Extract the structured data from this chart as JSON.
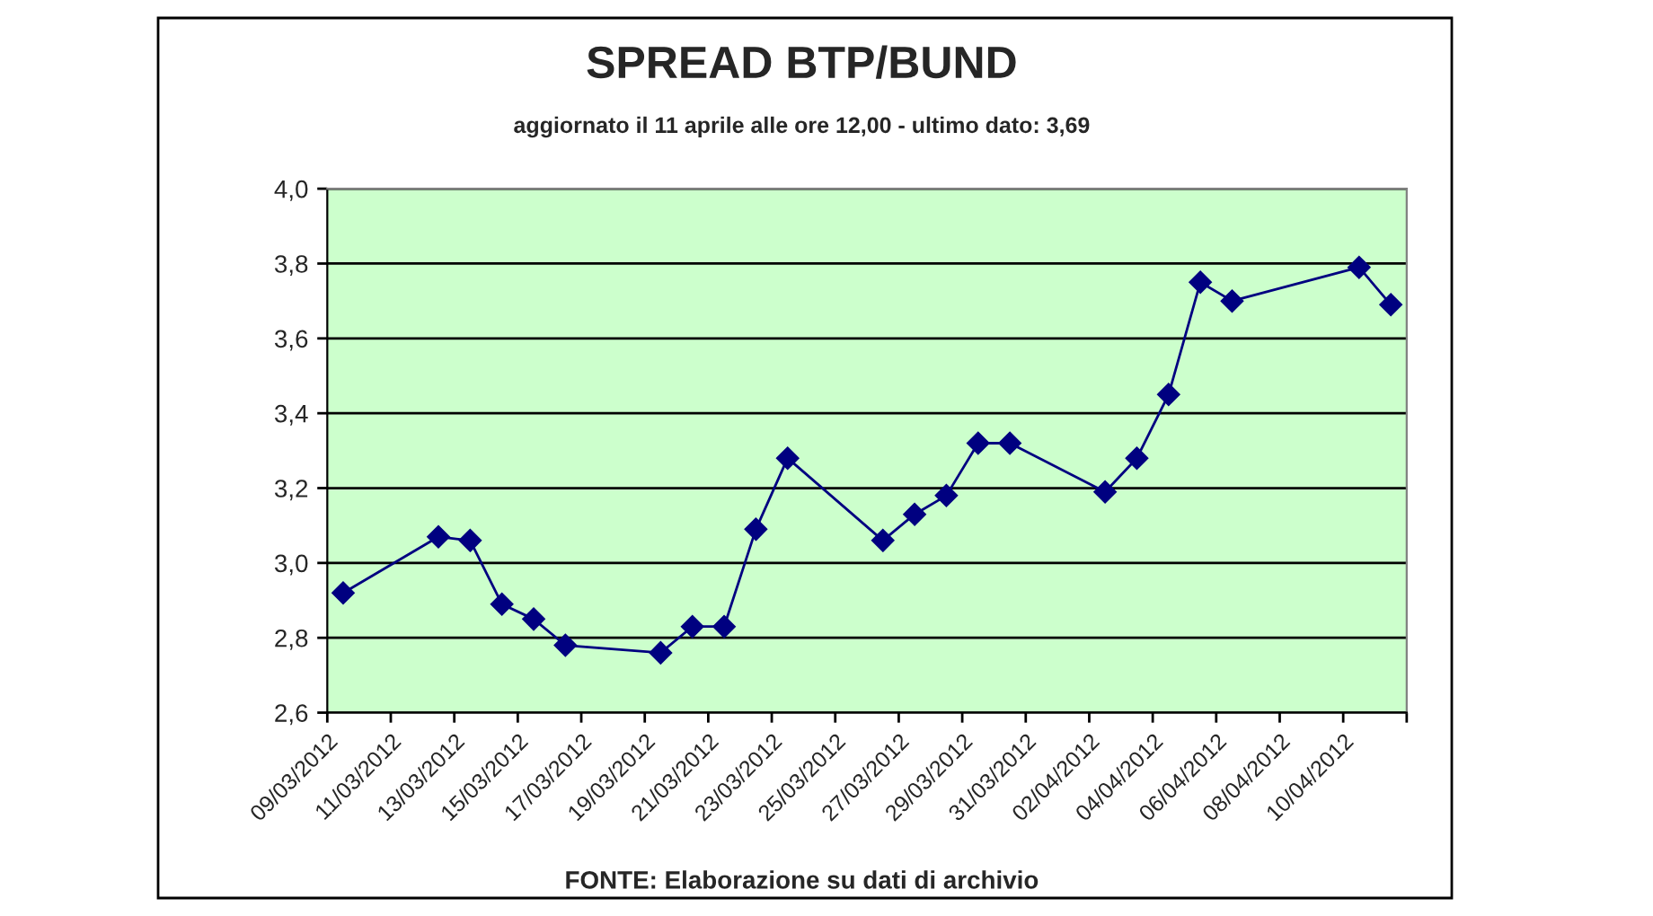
{
  "chart_data": {
    "type": "line",
    "title": "SPREAD BTP/BUND",
    "subtitle": "aggiornato il 11 aprile alle ore 12,00 - ultimo dato: 3,69",
    "x": [
      "2012-03-09T12:00",
      "2012-03-12T12:00",
      "2012-03-13T12:00",
      "2012-03-14T12:00",
      "2012-03-15T12:00",
      "2012-03-16T12:00",
      "2012-03-19T12:00",
      "2012-03-20T12:00",
      "2012-03-21T12:00",
      "2012-03-22T12:00",
      "2012-03-23T12:00",
      "2012-03-26T12:00",
      "2012-03-27T12:00",
      "2012-03-28T12:00",
      "2012-03-29T12:00",
      "2012-03-30T12:00",
      "2012-04-02T12:00",
      "2012-04-03T12:00",
      "2012-04-04T12:00",
      "2012-04-05T12:00",
      "2012-04-06T12:00",
      "2012-04-10T12:00",
      "2012-04-11T12:00"
    ],
    "series": [
      {
        "color": "#000080",
        "values": [
          2.92,
          3.07,
          3.06,
          2.89,
          2.85,
          2.78,
          2.76,
          2.83,
          2.83,
          3.09,
          3.28,
          3.06,
          3.13,
          3.18,
          3.32,
          3.32,
          3.19,
          3.28,
          3.45,
          3.75,
          3.7,
          3.79,
          3.69
        ]
      }
    ],
    "xlim": [
      "2012-03-09",
      "2012-04-12"
    ],
    "xticks": [
      {
        "value": "2012-03-09",
        "label": "09/03/2012"
      },
      {
        "value": "2012-03-11",
        "label": "11/03/2012"
      },
      {
        "value": "2012-03-13",
        "label": "13/03/2012"
      },
      {
        "value": "2012-03-15",
        "label": "15/03/2012"
      },
      {
        "value": "2012-03-17",
        "label": "17/03/2012"
      },
      {
        "value": "2012-03-19",
        "label": "19/03/2012"
      },
      {
        "value": "2012-03-21",
        "label": "21/03/2012"
      },
      {
        "value": "2012-03-23",
        "label": "23/03/2012"
      },
      {
        "value": "2012-03-25",
        "label": "25/03/2012"
      },
      {
        "value": "2012-03-27",
        "label": "27/03/2012"
      },
      {
        "value": "2012-03-29",
        "label": "29/03/2012"
      },
      {
        "value": "2012-03-31",
        "label": "31/03/2012"
      },
      {
        "value": "2012-04-02",
        "label": "02/04/2012"
      },
      {
        "value": "2012-04-04",
        "label": "04/04/2012"
      },
      {
        "value": "2012-04-06",
        "label": "06/04/2012"
      },
      {
        "value": "2012-04-08",
        "label": "08/04/2012"
      },
      {
        "value": "2012-04-10",
        "label": "10/04/2012"
      },
      {
        "value": "2012-04-12",
        "label": null
      }
    ],
    "ylim": [
      2.6,
      4.0
    ],
    "yticks": [
      {
        "value": 2.6,
        "label": "2,6"
      },
      {
        "value": 2.8,
        "label": "2,8"
      },
      {
        "value": 3.0,
        "label": "3,0"
      },
      {
        "value": 3.2,
        "label": "3,2"
      },
      {
        "value": 3.4,
        "label": "3,4"
      },
      {
        "value": 3.6,
        "label": "3,6"
      },
      {
        "value": 3.8,
        "label": "3,8"
      },
      {
        "value": 4.0,
        "label": "4,0"
      }
    ],
    "grid": "y",
    "marker": "diamond",
    "line_style": "solid",
    "legend": false,
    "annotations": [
      "FONTE: Elaborazione su dati di archivio"
    ]
  }
}
